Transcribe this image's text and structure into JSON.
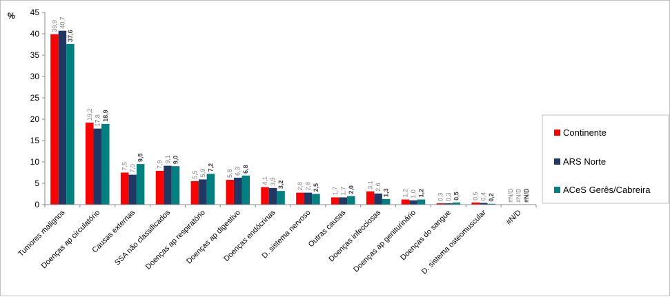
{
  "chart_data": {
    "type": "bar",
    "ylabel": "%",
    "ylim": [
      0,
      45
    ],
    "ytick_step": 5,
    "grid": false,
    "legend_position": "right",
    "categories": [
      "Tumores malignos",
      "Doenças ap circulatório",
      "Causas externas",
      "SSA não classificados",
      "Doenças ap respiratório",
      "Doenças ap digestivo",
      "Doenças endócrinas",
      "D. sistema nervoso",
      "Outras causas",
      "Doenças infecciosas",
      "Doenças ap geniturinário",
      "Doenças do sangue",
      "D. sistema osteomuscular",
      "#N/D"
    ],
    "series": [
      {
        "name": "Continente",
        "color": "#ff0000",
        "label_color": "#7f7f7f",
        "label_bold": false,
        "values": [
          39.9,
          19.2,
          7.5,
          7.9,
          5.5,
          5.8,
          4.1,
          2.8,
          1.7,
          3.1,
          1.2,
          0.3,
          0.5,
          null
        ],
        "labels": [
          "39,9",
          "19,2",
          "7,5",
          "7,9",
          "5,5",
          "5,8",
          "4,1",
          "2,8",
          "1,7",
          "3,1",
          "1,2",
          "0,3",
          "0,5",
          "#N/D"
        ]
      },
      {
        "name": "ARS Norte",
        "color": "#1f3864",
        "label_color": "#7f7f7f",
        "label_bold": false,
        "values": [
          40.7,
          17.8,
          7.0,
          9.1,
          5.9,
          6.3,
          3.9,
          2.8,
          1.7,
          2.6,
          1.0,
          0.3,
          0.4,
          null
        ],
        "labels": [
          "40,7",
          "17,8",
          "7,0",
          "9,1",
          "5,9",
          "6,3",
          "3,9",
          "2,8",
          "1,7",
          "2,6",
          "1,0",
          "0,3",
          "0,4",
          "#N/D"
        ]
      },
      {
        "name": "ACeS Gerês/Cabreira",
        "color": "#008080",
        "label_color": "#404040",
        "label_bold": true,
        "values": [
          37.6,
          18.9,
          9.5,
          9.0,
          7.2,
          6.8,
          3.2,
          2.5,
          2.0,
          1.3,
          1.2,
          0.5,
          0.2,
          null
        ],
        "labels": [
          "37,6",
          "18,9",
          "9,5",
          "9,0",
          "7,2",
          "6,8",
          "3,2",
          "2,5",
          "2,0",
          "1,3",
          "1,2",
          "0,5",
          "0,2",
          "#N/D"
        ]
      }
    ]
  }
}
